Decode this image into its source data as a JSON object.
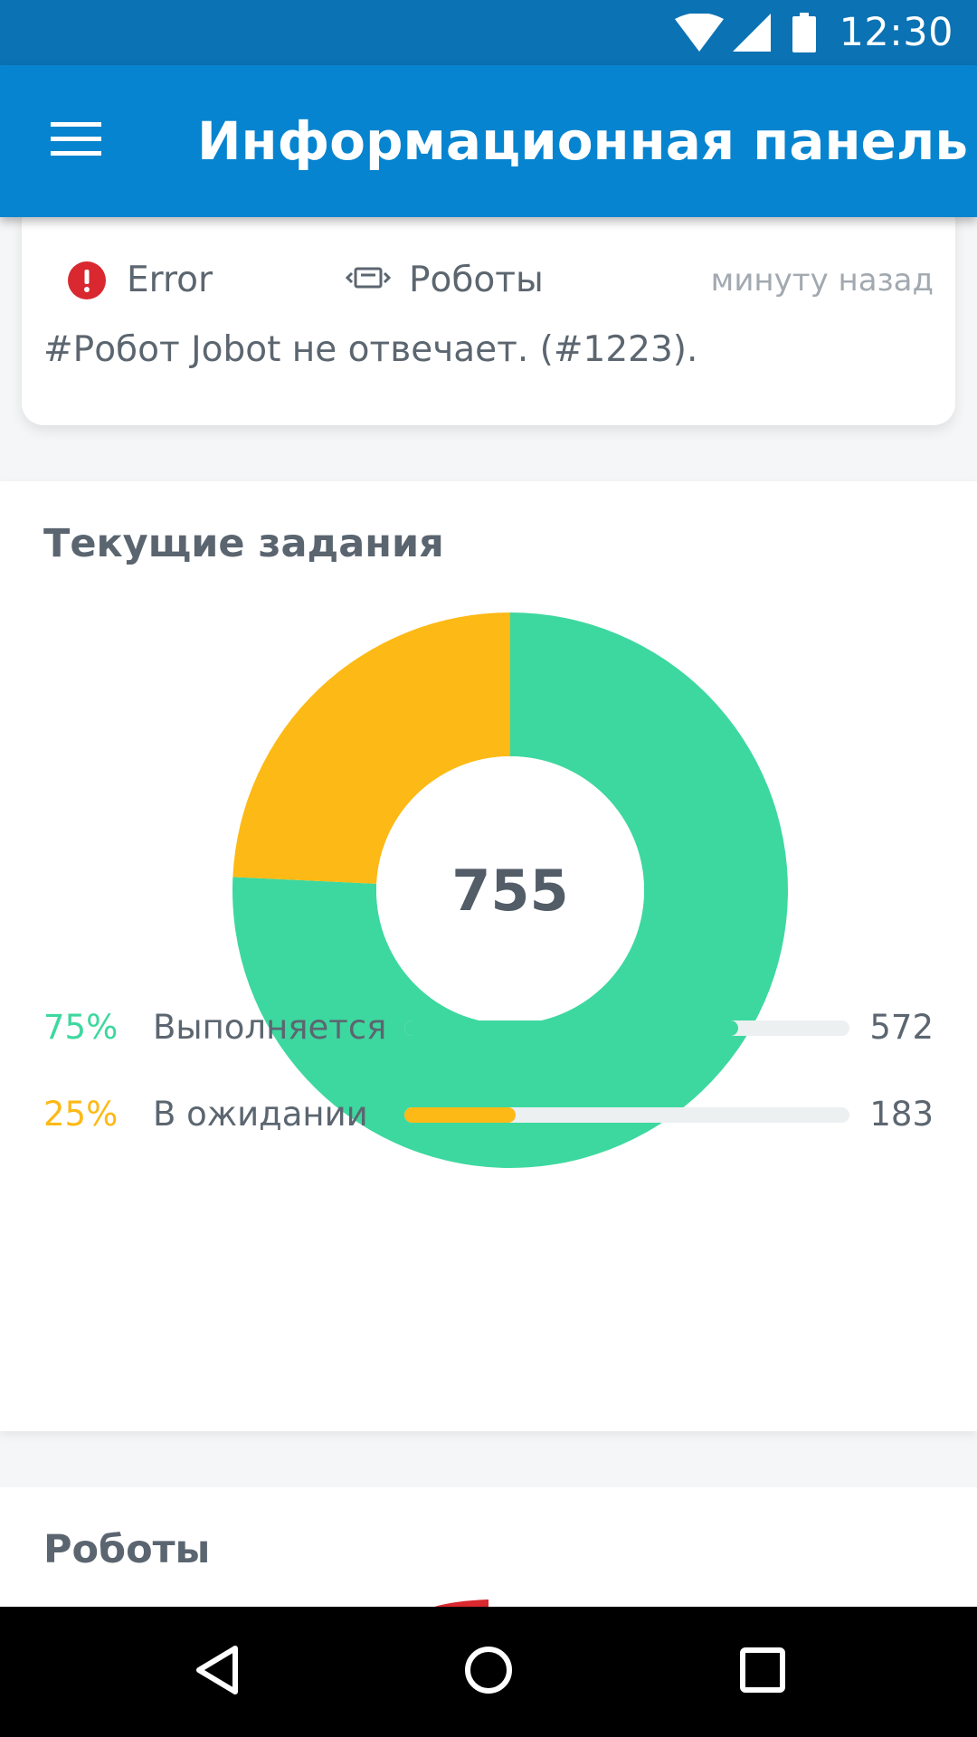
{
  "status_bar": {
    "time": "12:30",
    "icons": [
      "wifi-icon",
      "cell-signal-icon",
      "battery-icon"
    ]
  },
  "app_bar": {
    "title": "Информационная панель",
    "menu_icon": "hamburger-menu-icon"
  },
  "alert": {
    "level": "Error",
    "level_icon": "error-icon",
    "category": "Роботы",
    "category_icon": "robot-icon",
    "time": "минуту назад",
    "message": "#Робот Jobot не отвечает. (#1223)."
  },
  "jobs": {
    "title": "Текущие задания",
    "total": "755",
    "items": [
      {
        "percent": "75%",
        "label": "Выполняется",
        "value": "572",
        "color": "#3dd89f"
      },
      {
        "percent": "25%",
        "label": "В ожидании",
        "value": "183",
        "color": "#fdb915"
      }
    ]
  },
  "chart_data": {
    "type": "pie",
    "categories": [
      "Выполняется",
      "В ожидании"
    ],
    "values": [
      572,
      183
    ],
    "colors": [
      "#3dd89f",
      "#fdb915"
    ],
    "title": "Текущие задания",
    "center_label": "755"
  },
  "robots": {
    "title": "Роботы"
  },
  "nav_bar": {
    "icons": [
      "back-icon",
      "home-icon",
      "recents-icon"
    ]
  },
  "colors": {
    "status_bar": "#0b72b4",
    "app_bar": "#0784cf",
    "running": "#3dd89f",
    "pending": "#fdb915",
    "error": "#d9282f"
  }
}
